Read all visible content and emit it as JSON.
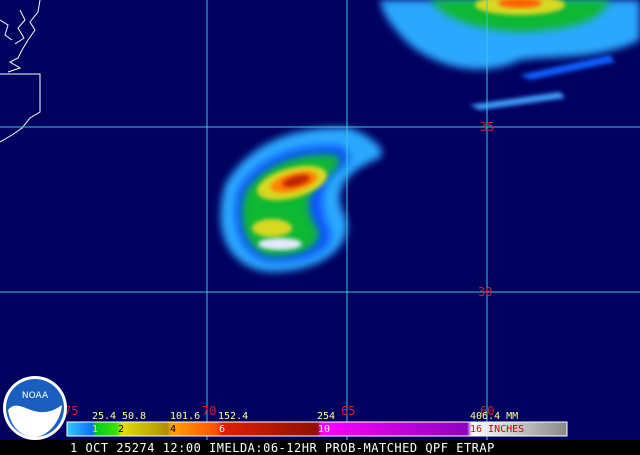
{
  "map": {
    "latitude_labels": [
      "35",
      "30"
    ],
    "longitude_labels": [
      "75",
      "70",
      "65",
      "60"
    ],
    "legend": {
      "mm_labels": [
        "25.4",
        "50.8",
        "101.6",
        "152.4",
        "254",
        "406.4 MM"
      ],
      "inch_labels": [
        "1",
        "2",
        "4",
        "6",
        "10",
        "16 INCHES"
      ]
    },
    "caption": "1 OCT 25274 12:00 IMELDA:06-12HR PROB-MATCHED QPF ETRAP",
    "logo": "NOAA"
  }
}
